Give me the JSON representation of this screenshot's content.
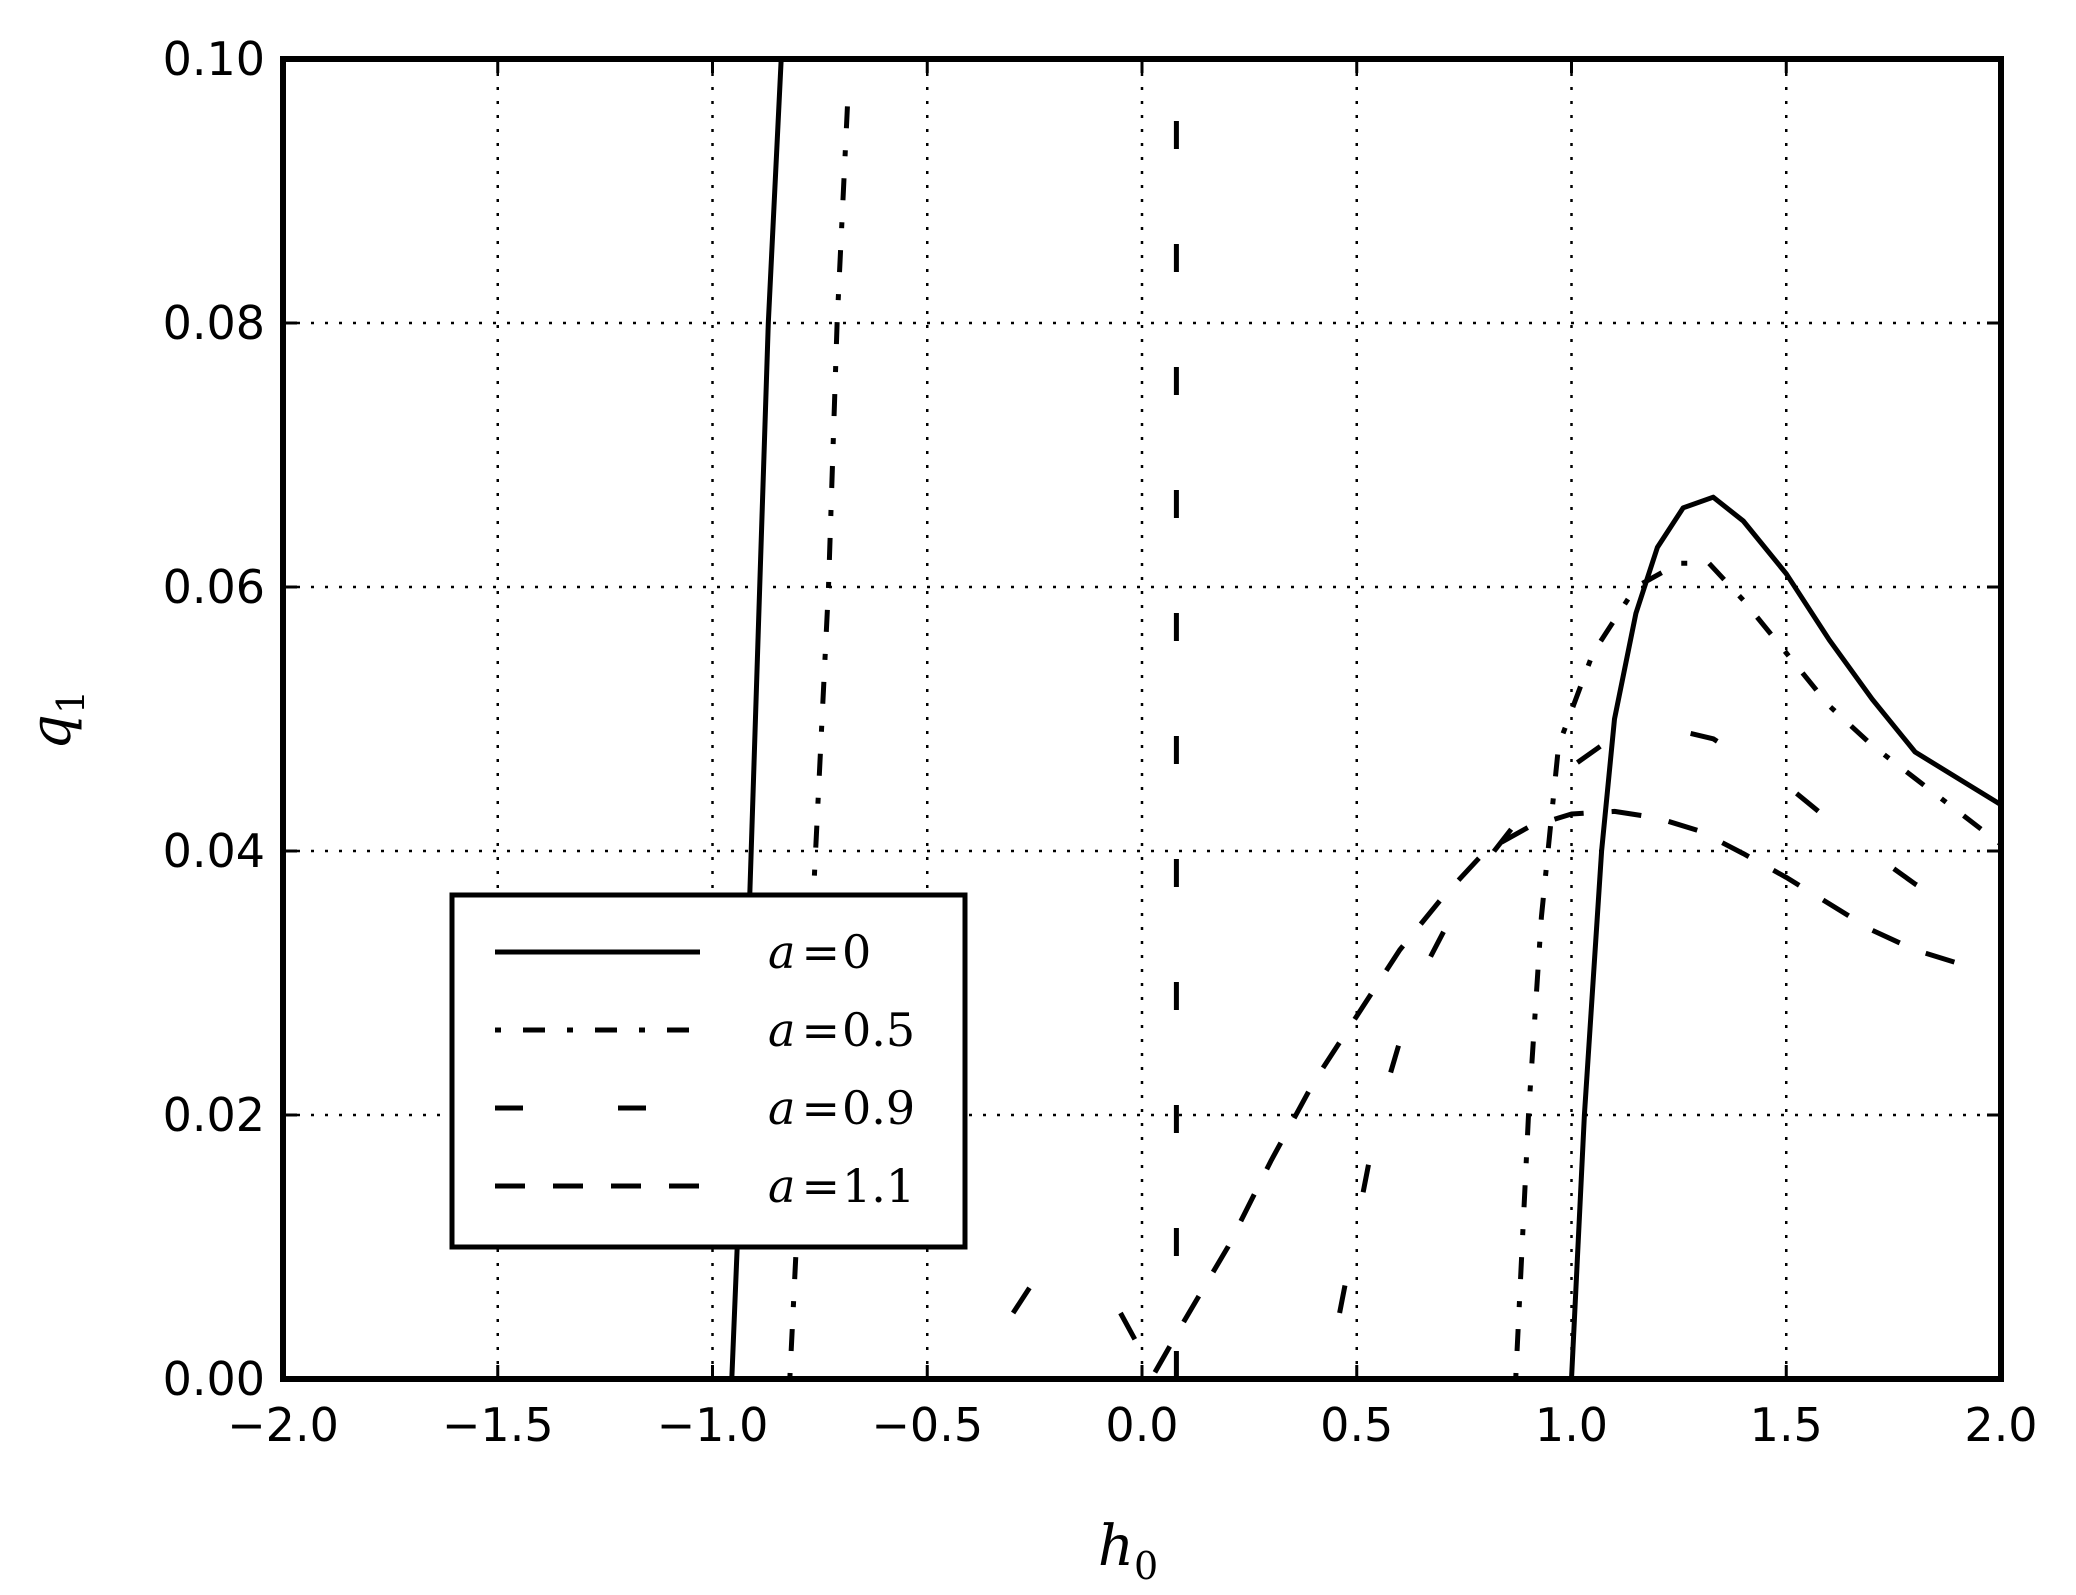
{
  "chart_data": {
    "type": "line",
    "xlabel": {
      "main": "h",
      "sub": "0"
    },
    "ylabel": {
      "main": "q",
      "sub": "1"
    },
    "xlim": [
      -2.0,
      2.0
    ],
    "ylim": [
      0.0,
      0.1
    ],
    "grid": true,
    "legend_position": "lower-left",
    "x_ticks": [
      "−2.0",
      "−1.5",
      "−1.0",
      "−0.5",
      "0.0",
      "0.5",
      "1.0",
      "1.5",
      "2.0"
    ],
    "x_tick_values": [
      -2.0,
      -1.5,
      -1.0,
      -0.5,
      0.0,
      0.5,
      1.0,
      1.5,
      2.0
    ],
    "y_ticks": [
      "0.00",
      "0.02",
      "0.04",
      "0.06",
      "0.08",
      "0.10"
    ],
    "y_tick_values": [
      0.0,
      0.02,
      0.04,
      0.06,
      0.08,
      0.1
    ],
    "series": [
      {
        "name": "a=0",
        "name_var": "a",
        "name_val": "0",
        "dash": "solid",
        "segments": [
          [
            [
              -0.955,
              0.0
            ],
            [
              -0.93,
              0.02
            ],
            [
              -0.91,
              0.04
            ],
            [
              -0.89,
              0.06
            ],
            [
              -0.87,
              0.08
            ],
            [
              -0.84,
              0.1
            ]
          ],
          [
            [
              1.0,
              0.0
            ],
            [
              1.03,
              0.02
            ],
            [
              1.07,
              0.04
            ],
            [
              1.1,
              0.05
            ],
            [
              1.15,
              0.058
            ],
            [
              1.2,
              0.063
            ],
            [
              1.26,
              0.066
            ],
            [
              1.33,
              0.0668
            ],
            [
              1.4,
              0.065
            ],
            [
              1.5,
              0.061
            ],
            [
              1.6,
              0.056
            ],
            [
              1.7,
              0.0515
            ],
            [
              1.8,
              0.0475
            ],
            [
              1.9,
              0.0455
            ],
            [
              2.0,
              0.0435
            ]
          ]
        ]
      },
      {
        "name": "a=0.5",
        "name_var": "a",
        "name_val": "0.5",
        "dash": "dashdot",
        "segments": [
          [
            [
              -0.82,
              0.0
            ],
            [
              -0.79,
              0.02
            ],
            [
              -0.76,
              0.04
            ],
            [
              -0.73,
              0.06
            ],
            [
              -0.71,
              0.08
            ],
            [
              -0.685,
              0.097
            ]
          ],
          [
            [
              0.87,
              0.0
            ],
            [
              0.9,
              0.02
            ],
            [
              0.93,
              0.035
            ],
            [
              0.97,
              0.048
            ],
            [
              1.05,
              0.055
            ],
            [
              1.15,
              0.06
            ],
            [
              1.25,
              0.0618
            ],
            [
              1.32,
              0.0618
            ],
            [
              1.4,
              0.059
            ],
            [
              1.5,
              0.055
            ],
            [
              1.6,
              0.051
            ],
            [
              1.7,
              0.048
            ],
            [
              1.8,
              0.0455
            ],
            [
              1.9,
              0.043
            ],
            [
              2.0,
              0.0405
            ]
          ]
        ]
      },
      {
        "name": "a=0.9",
        "name_var": "a",
        "name_val": "0.9",
        "dash": "longdash",
        "segments": [
          [
            [
              0.08,
              0.0
            ],
            [
              0.08,
              0.1
            ]
          ],
          [
            [
              0.46,
              0.005
            ],
            [
              0.55,
              0.02
            ],
            [
              0.64,
              0.03
            ],
            [
              0.72,
              0.035
            ],
            [
              0.82,
              0.04
            ],
            [
              0.94,
              0.045
            ],
            [
              1.07,
              0.048
            ],
            [
              1.2,
              0.0495
            ],
            [
              1.33,
              0.0485
            ],
            [
              1.5,
              0.045
            ],
            [
              1.65,
              0.041
            ],
            [
              1.8,
              0.0375
            ],
            [
              1.95,
              0.0345
            ]
          ]
        ]
      },
      {
        "name": "a=1.1",
        "name_var": "a",
        "name_val": "1.1",
        "dash": "dash",
        "segments": [
          [
            [
              -0.3,
              0.005
            ],
            [
              -0.25,
              0.0075
            ]
          ],
          [
            [
              -0.05,
              0.005
            ],
            [
              0.0,
              0.002
            ]
          ],
          [
            [
              0.03,
              0.0005
            ],
            [
              0.1,
              0.0045
            ],
            [
              0.2,
              0.01
            ],
            [
              0.3,
              0.0165
            ],
            [
              0.4,
              0.0225
            ],
            [
              0.5,
              0.0275
            ],
            [
              0.6,
              0.0325
            ],
            [
              0.7,
              0.0365
            ],
            [
              0.8,
              0.04
            ],
            [
              0.9,
              0.0418
            ],
            [
              1.0,
              0.0428
            ],
            [
              1.1,
              0.043
            ],
            [
              1.2,
              0.0425
            ],
            [
              1.3,
              0.0415
            ],
            [
              1.4,
              0.0398
            ],
            [
              1.5,
              0.038
            ],
            [
              1.6,
              0.036
            ],
            [
              1.7,
              0.034
            ],
            [
              1.8,
              0.0325
            ],
            [
              1.95,
              0.031
            ]
          ]
        ]
      }
    ]
  }
}
